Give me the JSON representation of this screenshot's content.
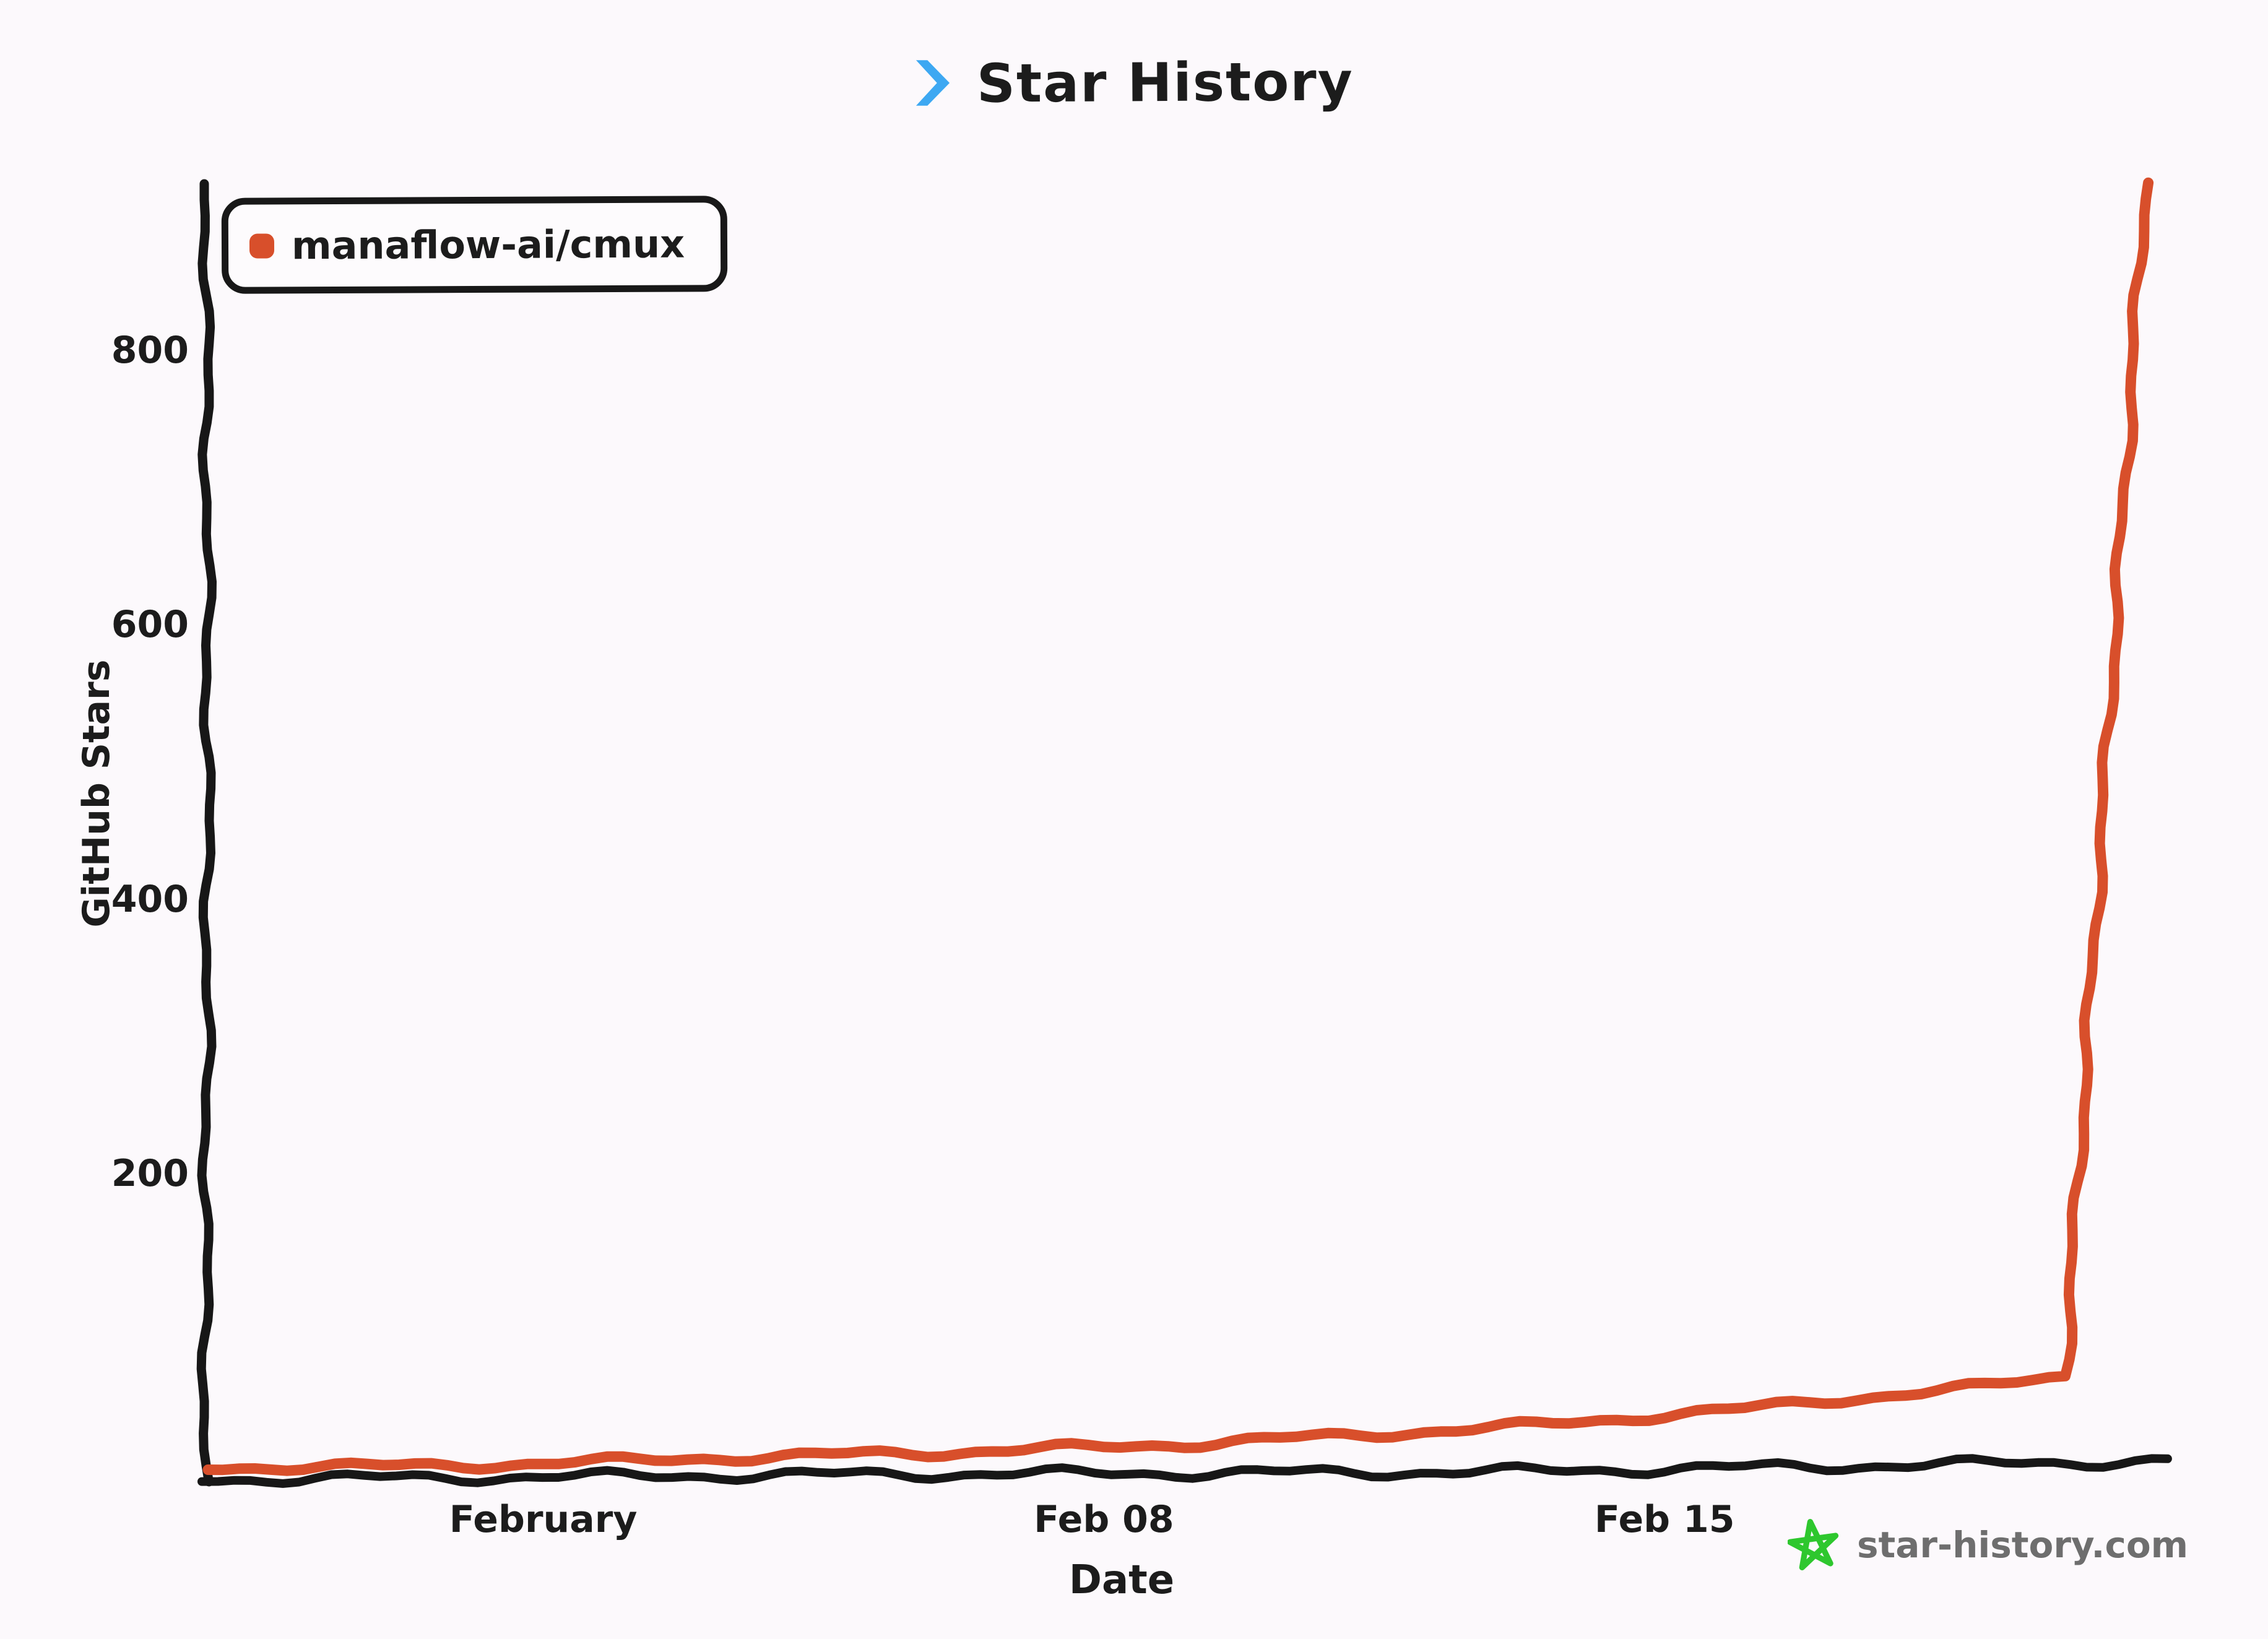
{
  "page": {
    "background": "#fcf9fc",
    "text_color": "#1c1c1c",
    "axis_color": "#171717"
  },
  "header": {
    "title": "Star History",
    "chevron_color": "#3da8f2"
  },
  "legend": {
    "items": [
      {
        "label": "manaflow-ai/cmux",
        "color": "#d84f2b"
      }
    ]
  },
  "watermark": {
    "text": "star-history.com",
    "star_color": "#2ec72e",
    "text_color": "#6e6e6e"
  },
  "chart_data": {
    "type": "line",
    "title": "Star History",
    "xlabel": "Date",
    "ylabel": "GitHub Stars",
    "grid": false,
    "legend_position": "top-left",
    "style": "hand-drawn (xkcd-like)",
    "ylim": [
      0,
      940
    ],
    "y_ticks": [
      800,
      600,
      400,
      200
    ],
    "x_tick_labels": [
      "February",
      "Feb 08",
      "Feb 15"
    ],
    "x_tick_day_index": [
      4,
      11,
      18
    ],
    "series": [
      {
        "name": "manaflow-ai/cmux",
        "color": "#d84f2b",
        "points": [
          {
            "date": "Jan 28",
            "stars": 2
          },
          {
            "date": "Jan 29",
            "stars": 3
          },
          {
            "date": "Jan 30",
            "stars": 3
          },
          {
            "date": "Jan 31",
            "stars": 4
          },
          {
            "date": "Feb 01",
            "stars": 5
          },
          {
            "date": "Feb 02",
            "stars": 7
          },
          {
            "date": "Feb 03",
            "stars": 9
          },
          {
            "date": "Feb 04",
            "stars": 10
          },
          {
            "date": "Feb 05",
            "stars": 12
          },
          {
            "date": "Feb 06",
            "stars": 13
          },
          {
            "date": "Feb 07",
            "stars": 15
          },
          {
            "date": "Feb 08",
            "stars": 17
          },
          {
            "date": "Feb 09",
            "stars": 19
          },
          {
            "date": "Feb 10",
            "stars": 22
          },
          {
            "date": "Feb 11",
            "stars": 25
          },
          {
            "date": "Feb 12",
            "stars": 28
          },
          {
            "date": "Feb 13",
            "stars": 31
          },
          {
            "date": "Feb 14",
            "stars": 35
          },
          {
            "date": "Feb 15",
            "stars": 40
          },
          {
            "date": "Feb 16",
            "stars": 44
          },
          {
            "date": "Feb 17",
            "stars": 50
          },
          {
            "date": "Feb 18",
            "stars": 55
          },
          {
            "date": "Feb 19",
            "stars": 60
          },
          {
            "date": "Feb 20",
            "stars": 68
          },
          {
            "date": "Feb 21",
            "stars": 920
          }
        ]
      }
    ]
  }
}
